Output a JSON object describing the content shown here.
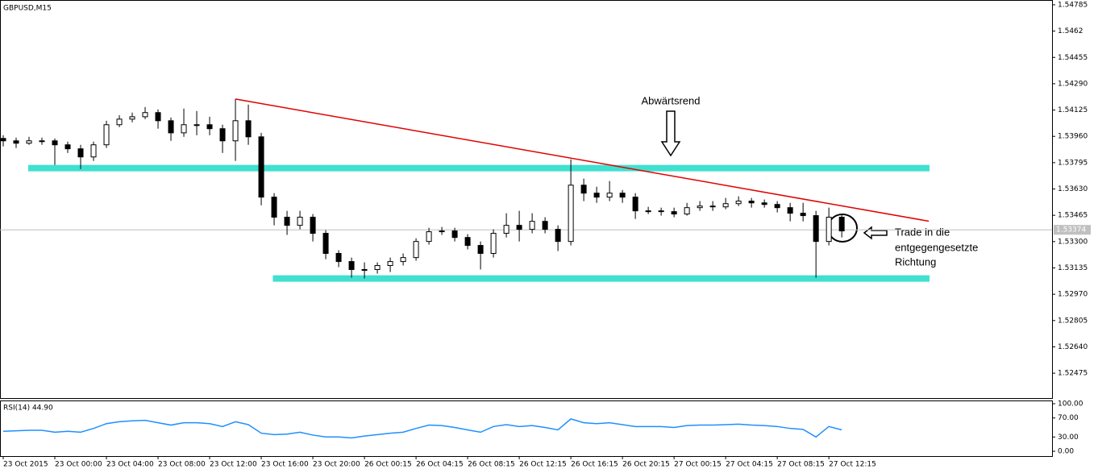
{
  "chart_data": [
    {
      "type": "candlestick",
      "title": "GBPUSD,M15",
      "xlim": [
        -0.25,
        81.3
      ],
      "xticks": [
        {
          "value": 0,
          "label": "23 Oct 2015"
        },
        {
          "value": 4,
          "label": "23 Oct 00:00"
        },
        {
          "value": 8,
          "label": "23 Oct 04:00"
        },
        {
          "value": 12,
          "label": "23 Oct 08:00"
        },
        {
          "value": 16,
          "label": "23 Oct 12:00"
        },
        {
          "value": 20,
          "label": "23 Oct 16:00"
        },
        {
          "value": 24,
          "label": "23 Oct 20:00"
        },
        {
          "value": 28,
          "label": "26 Oct 00:15"
        },
        {
          "value": 32,
          "label": "26 Oct 04:15"
        },
        {
          "value": 36,
          "label": "26 Oct 08:15"
        },
        {
          "value": 40,
          "label": "26 Oct 12:15"
        },
        {
          "value": 44,
          "label": "26 Oct 16:15"
        },
        {
          "value": 48,
          "label": "26 Oct 20:15"
        },
        {
          "value": 52,
          "label": "27 Oct 00:15"
        },
        {
          "value": 56,
          "label": "27 Oct 04:15"
        },
        {
          "value": 60,
          "label": "27 Oct 08:15"
        },
        {
          "value": 64,
          "label": "27 Oct 12:15"
        }
      ],
      "ylim": [
        1.52319,
        1.54815
      ],
      "yticks": [
        1.54785,
        1.5462,
        1.54455,
        {
          "value": 1.5429,
          "label": "1.54290"
        },
        1.54125,
        {
          "value": 1.5396,
          "label": "1.53960"
        },
        1.53795,
        {
          "value": 1.5363,
          "label": "1.53630"
        },
        1.53465,
        {
          "value": 1.533,
          "label": "1.53300"
        },
        1.53135,
        {
          "value": 1.5297,
          "label": "1.52970"
        },
        1.52805,
        {
          "value": 1.5264,
          "label": "1.52640"
        },
        1.52475
      ],
      "grid": false,
      "current_price": 1.53374,
      "candles": [
        [
          1.53947,
          1.53967,
          1.53897,
          1.53932
        ],
        [
          1.53932,
          1.53952,
          1.53887,
          1.53917
        ],
        [
          1.53917,
          1.53957,
          1.53907,
          1.53932
        ],
        [
          1.53932,
          1.53952,
          1.53907,
          1.53932
        ],
        [
          1.53932,
          1.53947,
          1.53781,
          1.53907
        ],
        [
          1.53907,
          1.53927,
          1.53856,
          1.53882
        ],
        [
          1.53882,
          1.53907,
          1.53755,
          1.53831
        ],
        [
          1.53831,
          1.53927,
          1.53806,
          1.53907
        ],
        [
          1.53907,
          1.54058,
          1.53887,
          1.54033
        ],
        [
          1.54033,
          1.54093,
          1.54018,
          1.54068
        ],
        [
          1.54068,
          1.54109,
          1.54048,
          1.54083
        ],
        [
          1.54083,
          1.54144,
          1.54068,
          1.54109
        ],
        [
          1.54109,
          1.54129,
          1.54008,
          1.54058
        ],
        [
          1.54058,
          1.54078,
          1.53932,
          1.53982
        ],
        [
          1.53982,
          1.54134,
          1.53957,
          1.54033
        ],
        [
          1.54033,
          1.54119,
          1.53967,
          1.54033
        ],
        [
          1.54033,
          1.54083,
          1.53967,
          1.54008
        ],
        [
          1.54008,
          1.54033,
          1.53856,
          1.53932
        ],
        [
          1.53932,
          1.54194,
          1.53806,
          1.54058
        ],
        [
          1.54058,
          1.54159,
          1.53907,
          1.53957
        ],
        [
          1.53957,
          1.53982,
          1.53528,
          1.53579
        ],
        [
          1.53579,
          1.53604,
          1.53402,
          1.53453
        ],
        [
          1.53453,
          1.53493,
          1.53342,
          1.53402
        ],
        [
          1.53402,
          1.53493,
          1.53377,
          1.53453
        ],
        [
          1.53453,
          1.53473,
          1.53301,
          1.53352
        ],
        [
          1.53352,
          1.53372,
          1.5319,
          1.53226
        ],
        [
          1.53226,
          1.53246,
          1.5314,
          1.53175
        ],
        [
          1.53175,
          1.532,
          1.53074,
          1.53125
        ],
        [
          1.53125,
          1.5317,
          1.53069,
          1.53125
        ],
        [
          1.53125,
          1.5317,
          1.53099,
          1.5315
        ],
        [
          1.5315,
          1.532,
          1.53109,
          1.53175
        ],
        [
          1.53175,
          1.53226,
          1.5315,
          1.532
        ],
        [
          1.532,
          1.53321,
          1.5318,
          1.53301
        ],
        [
          1.53301,
          1.53387,
          1.53281,
          1.53362
        ],
        [
          1.53362,
          1.53392,
          1.53342,
          1.53367
        ],
        [
          1.53367,
          1.53387,
          1.53301,
          1.53326
        ],
        [
          1.53326,
          1.53347,
          1.53251,
          1.53276
        ],
        [
          1.53276,
          1.53301,
          1.53125,
          1.53226
        ],
        [
          1.53226,
          1.53377,
          1.532,
          1.53352
        ],
        [
          1.53352,
          1.53478,
          1.53326,
          1.53402
        ],
        [
          1.53402,
          1.53493,
          1.53301,
          1.53377
        ],
        [
          1.53377,
          1.53478,
          1.53352,
          1.53427
        ],
        [
          1.53427,
          1.53453,
          1.53352,
          1.53377
        ],
        [
          1.53377,
          1.53402,
          1.53241,
          1.53301
        ],
        [
          1.53301,
          1.53816,
          1.53276,
          1.53654
        ],
        [
          1.53654,
          1.53695,
          1.53554,
          1.53604
        ],
        [
          1.53604,
          1.53644,
          1.53543,
          1.53579
        ],
        [
          1.53579,
          1.5368,
          1.53554,
          1.53604
        ],
        [
          1.53604,
          1.53624,
          1.53543,
          1.53579
        ],
        [
          1.53579,
          1.53604,
          1.53442,
          1.53493
        ],
        [
          1.53493,
          1.53518,
          1.53473,
          1.53493
        ],
        [
          1.53493,
          1.53513,
          1.53463,
          1.53488
        ],
        [
          1.53488,
          1.53513,
          1.53453,
          1.53473
        ],
        [
          1.53473,
          1.53543,
          1.53463,
          1.53513
        ],
        [
          1.53513,
          1.53554,
          1.53493,
          1.53523
        ],
        [
          1.53523,
          1.53554,
          1.53493,
          1.53518
        ],
        [
          1.53518,
          1.53574,
          1.53503,
          1.53538
        ],
        [
          1.53538,
          1.53584,
          1.53523,
          1.53554
        ],
        [
          1.53554,
          1.53574,
          1.53513,
          1.53543
        ],
        [
          1.53543,
          1.53564,
          1.53513,
          1.53533
        ],
        [
          1.53533,
          1.53554,
          1.53483,
          1.53513
        ],
        [
          1.53513,
          1.53543,
          1.53427,
          1.53478
        ],
        [
          1.53478,
          1.53543,
          1.53427,
          1.53463
        ],
        [
          1.53463,
          1.53493,
          1.53074,
          1.53301
        ],
        [
          1.53301,
          1.53513,
          1.53276,
          1.53453
        ],
        [
          1.53453,
          1.53473,
          1.53326,
          1.53367
        ]
      ],
      "trend_line": {
        "color": "#e00000",
        "x": [
          18,
          71.75
        ],
        "y": [
          1.54194,
          1.53428
        ]
      },
      "levels": [
        {
          "color": "#40e0d0",
          "value": 1.53761,
          "x": [
            1.94,
            71.8
          ]
        },
        {
          "color": "#40e0d0",
          "value": 1.53069,
          "x": [
            20.9,
            71.8
          ]
        }
      ],
      "annotations": {
        "trend": "Abwärtsrend",
        "trade": [
          "Trade in die",
          "entgegengesetzte",
          "Richtung"
        ]
      }
    },
    {
      "type": "line",
      "title": "RSI(14) 44.90",
      "xlim": [
        -0.25,
        81.3
      ],
      "ylim": [
        0,
        100
      ],
      "yticks": [
        {
          "value": 100,
          "label": "100.00"
        },
        {
          "value": 70,
          "label": "70.00"
        },
        {
          "value": 30,
          "label": "30.00"
        },
        {
          "value": 0,
          "label": "0.00"
        }
      ],
      "series": [
        {
          "color": "#1e90ff",
          "values": [
            42,
            43,
            44,
            44,
            40,
            42,
            40,
            48,
            58,
            62,
            64,
            65,
            60,
            55,
            60,
            60,
            58,
            52,
            62,
            56,
            38,
            35,
            36,
            40,
            34,
            30,
            30,
            28,
            32,
            35,
            38,
            40,
            48,
            55,
            54,
            50,
            45,
            40,
            52,
            56,
            52,
            54,
            50,
            45,
            68,
            60,
            58,
            60,
            56,
            52,
            52,
            52,
            50,
            54,
            55,
            55,
            56,
            57,
            55,
            54,
            52,
            48,
            46,
            30,
            52,
            44.9
          ]
        }
      ]
    }
  ]
}
